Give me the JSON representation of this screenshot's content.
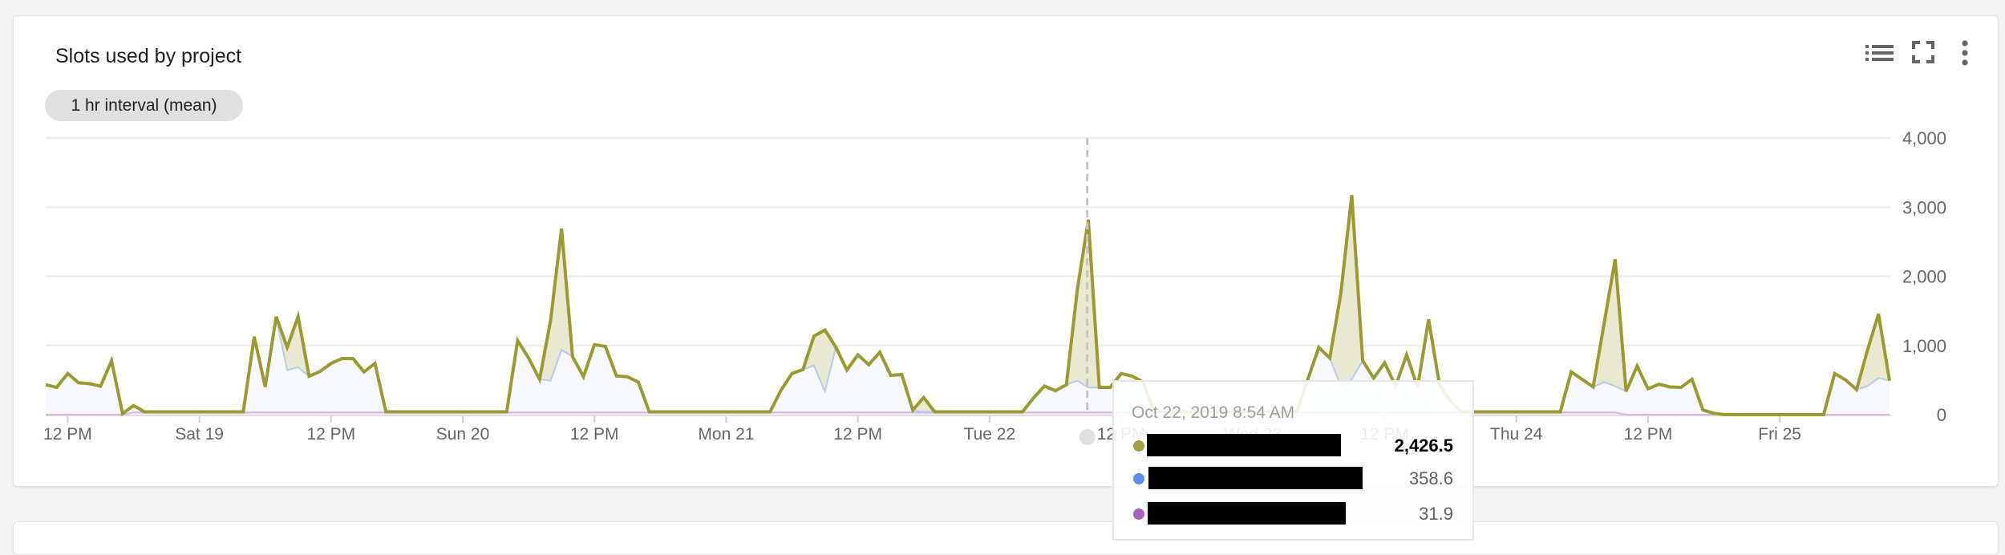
{
  "card": {
    "title": "Slots used by project",
    "interval_chip": "1 hr interval (mean)",
    "icons": [
      "legend-list-icon",
      "fullscreen-icon",
      "more-vert-icon"
    ]
  },
  "tooltip": {
    "date": "Oct 22, 2019 8:54 AM",
    "rows": [
      {
        "color": "#a3a040",
        "value": "2,426.5"
      },
      {
        "color": "#5b8def",
        "value": "358.6"
      },
      {
        "color": "#ab5fc0",
        "value": "31.9"
      }
    ]
  },
  "chart_data": {
    "type": "area",
    "stacked": true,
    "title": "Slots used by project",
    "interval": "1 hr",
    "x_start": "2019-10-18T10:00",
    "x_step_hours": 1,
    "hover_time": "2019-10-22T08:54",
    "ylim": [
      0,
      4000
    ],
    "yticks": [
      {
        "v": 0,
        "label": "0"
      },
      {
        "v": 1000,
        "label": "1,000"
      },
      {
        "v": 2000,
        "label": "2,000"
      },
      {
        "v": 3000,
        "label": "3,000"
      },
      {
        "v": 4000,
        "label": "4,000"
      }
    ],
    "y_axis_side": "right",
    "grid": true,
    "xticks": [
      {
        "time": "2019-10-18T12:00",
        "label": "12 PM"
      },
      {
        "time": "2019-10-19T00:00",
        "label": "Sat 19"
      },
      {
        "time": "2019-10-19T12:00",
        "label": "12 PM"
      },
      {
        "time": "2019-10-20T00:00",
        "label": "Sun 20"
      },
      {
        "time": "2019-10-20T12:00",
        "label": "12 PM"
      },
      {
        "time": "2019-10-21T00:00",
        "label": "Mon 21"
      },
      {
        "time": "2019-10-21T12:00",
        "label": "12 PM"
      },
      {
        "time": "2019-10-22T00:00",
        "label": "Tue 22"
      },
      {
        "time": "2019-10-22T12:00",
        "label": "12 PM"
      },
      {
        "time": "2019-10-23T00:00",
        "label": "Wed 23"
      },
      {
        "time": "2019-10-23T12:00",
        "label": "12 PM"
      },
      {
        "time": "2019-10-24T00:00",
        "label": "Thu 24"
      },
      {
        "time": "2019-10-24T12:00",
        "label": "12 PM"
      },
      {
        "time": "2019-10-25T00:00",
        "label": "Fri 25"
      }
    ],
    "series": [
      {
        "color": "#ab5fc0",
        "line": "#d7b4e2",
        "fill": "#f3e8f6",
        "values": [
          0,
          0,
          0,
          0,
          0,
          0,
          0,
          0,
          32,
          32,
          32,
          32,
          32,
          32,
          32,
          32,
          32,
          32,
          32,
          32,
          32,
          32,
          32,
          32,
          32,
          32,
          32,
          32,
          32,
          32,
          32,
          32,
          32,
          32,
          32,
          32,
          32,
          32,
          32,
          32,
          32,
          32,
          32,
          32,
          32,
          32,
          32,
          32,
          32,
          32,
          32,
          32,
          32,
          32,
          32,
          32,
          32,
          32,
          32,
          32,
          32,
          32,
          32,
          32,
          32,
          32,
          32,
          32,
          32,
          32,
          32,
          32,
          32,
          32,
          32,
          32,
          32,
          32,
          32,
          32,
          32,
          32,
          32,
          32,
          32,
          32,
          32,
          32,
          32,
          32,
          32,
          32,
          32,
          32,
          32,
          31.9,
          32,
          32,
          32,
          32,
          32,
          32,
          32,
          32,
          32,
          32,
          32,
          32,
          32,
          32,
          32,
          32,
          32,
          32,
          32,
          32,
          32,
          32,
          32,
          32,
          32,
          32,
          32,
          32,
          32,
          32,
          32,
          32,
          32,
          32,
          32,
          32,
          32,
          32,
          32,
          32,
          32,
          32,
          32,
          32,
          32,
          32,
          32,
          32,
          0,
          0,
          0,
          0,
          0,
          0,
          0,
          0,
          0,
          0,
          0,
          0,
          0,
          0,
          0,
          0,
          0,
          0,
          0,
          0,
          0,
          0,
          0,
          0,
          0
        ]
      },
      {
        "color": "#5b8def",
        "line": "#b3cbef",
        "fill": "#f6f8fe",
        "values": [
          432,
          394,
          595,
          460,
          448,
          410,
          780,
          15,
          99,
          8,
          8,
          8,
          8,
          8,
          8,
          8,
          8,
          8,
          8,
          1095,
          368,
          1368,
          613,
          651,
          524,
          593,
          709,
          778,
          778,
          586,
          709,
          8,
          8,
          8,
          8,
          8,
          8,
          8,
          8,
          8,
          8,
          8,
          8,
          1038,
          786,
          478,
          458,
          902,
          806,
          516,
          980,
          953,
          528,
          516,
          439,
          8,
          8,
          8,
          8,
          8,
          8,
          8,
          8,
          8,
          8,
          8,
          8,
          323,
          563,
          620,
          678,
          304,
          941,
          613,
          833,
          690,
          871,
          536,
          548,
          28,
          8,
          8,
          8,
          8,
          8,
          8,
          8,
          8,
          8,
          8,
          208,
          381,
          315,
          400,
          458,
          358.6,
          362,
          362,
          563,
          524,
          438,
          8,
          8,
          8,
          8,
          8,
          8,
          8,
          8,
          8,
          8,
          8,
          8,
          8,
          8,
          478,
          941,
          786,
          381,
          478,
          748,
          497,
          717,
          381,
          833,
          362,
          1346,
          400,
          168,
          8,
          8,
          8,
          8,
          8,
          8,
          8,
          8,
          8,
          8,
          586,
          478,
          368,
          438,
          381,
          336,
          703,
          375,
          440,
          400,
          394,
          510,
          66,
          20,
          0,
          0,
          0,
          0,
          0,
          0,
          0,
          0,
          0,
          0,
          595,
          502,
          363,
          413,
          529,
          490
        ]
      },
      {
        "color": "#a3a040",
        "line": "#9b9a2f",
        "fill": "#e9e8d0",
        "values": [
          0,
          0,
          0,
          0,
          0,
          0,
          0,
          0,
          0,
          0,
          0,
          0,
          0,
          0,
          0,
          0,
          0,
          0,
          0,
          0,
          0,
          17,
          328,
          734,
          0,
          0,
          0,
          0,
          0,
          0,
          0,
          0,
          0,
          0,
          0,
          0,
          0,
          0,
          0,
          0,
          0,
          0,
          0,
          0,
          0,
          0,
          869,
          1756,
          0,
          0,
          0,
          0,
          0,
          0,
          0,
          0,
          0,
          0,
          0,
          0,
          0,
          0,
          0,
          0,
          0,
          0,
          0,
          0,
          0,
          0,
          425,
          888,
          0,
          0,
          0,
          0,
          0,
          0,
          0,
          6,
          207,
          0,
          0,
          0,
          0,
          0,
          0,
          0,
          0,
          0,
          0,
          0,
          0,
          0,
          1320,
          2426.5,
          0,
          0,
          0,
          0,
          0,
          0,
          0,
          0,
          0,
          0,
          0,
          0,
          0,
          0,
          0,
          0,
          0,
          0,
          0,
          0,
          0,
          0,
          1332,
          2664,
          0,
          0,
          0,
          0,
          0,
          0,
          0,
          0,
          0,
          0,
          0,
          0,
          0,
          0,
          0,
          0,
          0,
          0,
          0,
          0,
          0,
          0,
          850,
          1834,
          0,
          0,
          0,
          0,
          0,
          0,
          0,
          0,
          0,
          0,
          0,
          0,
          0,
          0,
          0,
          0,
          0,
          0,
          0,
          0,
          0,
          0,
          521,
          927,
          0
        ]
      }
    ]
  }
}
